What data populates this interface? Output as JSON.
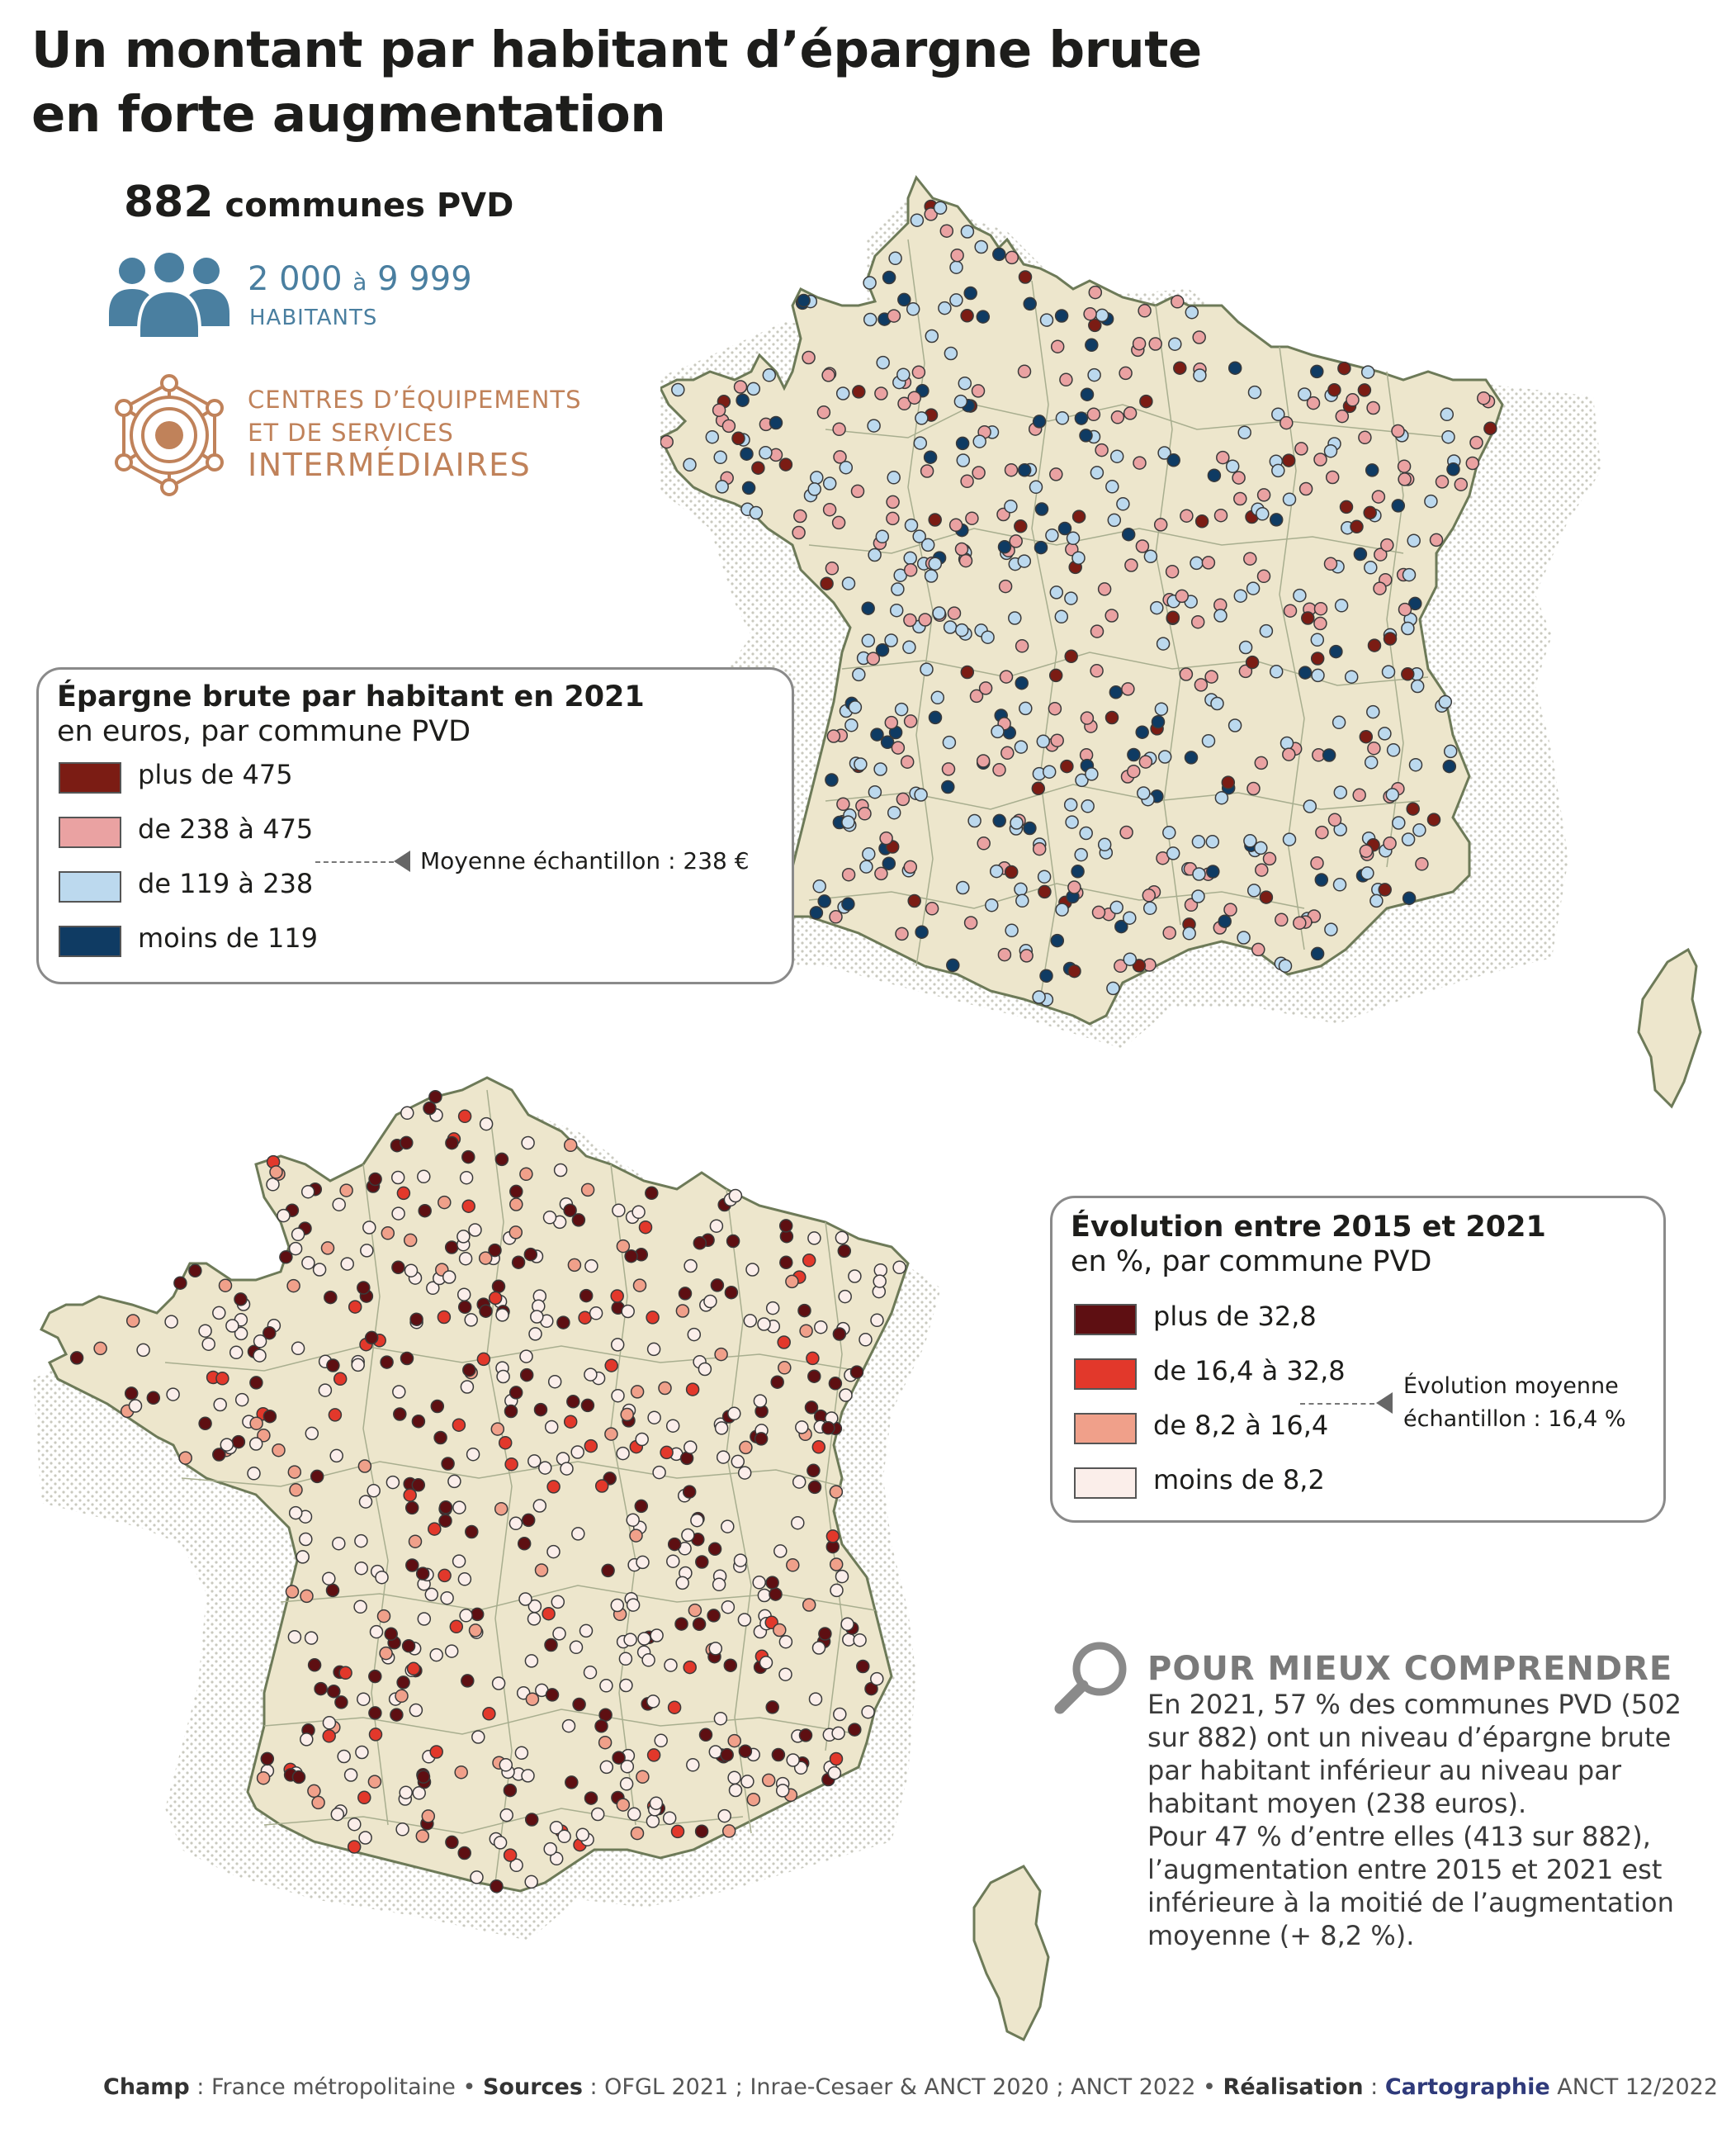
{
  "header": {
    "title_line1": "Un montant par habitant d’épargne brute",
    "title_line2": "en forte augmentation"
  },
  "summary": {
    "count": "882",
    "count_label": "communes PVD",
    "pop_from": "2 000",
    "pop_sep": "à",
    "pop_to": "9 999",
    "pop_unit": "HABITANTS",
    "ces_line1": "CENTRES D’ÉQUIPEMENTS",
    "ces_line2": "ET DE SERVICES",
    "ces_line3": "INTERMÉDIAIRES"
  },
  "legend_epargne": {
    "title": "Épargne brute par habitant en 2021",
    "subtitle": "en euros, par commune PVD",
    "items": [
      {
        "label": "plus de 475",
        "color": "#7b1c14"
      },
      {
        "label": "de 238 à 475",
        "color": "#eaa2a2"
      },
      {
        "label": "de 119 à 238",
        "color": "#bcd9ee"
      },
      {
        "label": "moins de 119",
        "color": "#0f3b63"
      }
    ],
    "average": "Moyenne échantillon : 238 €"
  },
  "legend_evolution": {
    "title": "Évolution entre 2015 et 2021",
    "subtitle": "en %, par commune PVD",
    "items": [
      {
        "label": "plus de 32,8",
        "color": "#5e0f12"
      },
      {
        "label": "de 16,4 à 32,8",
        "color": "#e2382b"
      },
      {
        "label": "de 8,2 à 16,4",
        "color": "#f0a08a"
      },
      {
        "label": "moins de 8,2",
        "color": "#fbeeea"
      }
    ],
    "average_line1": "Évolution moyenne",
    "average_line2": "échantillon : 16,4 %"
  },
  "pour_mieux": {
    "title": "POUR MIEUX COMPRENDRE",
    "body_p1": "En 2021, 57 % des communes PVD (502 sur 882) ont un niveau d’épargne brute par habitant inférieur au niveau par habitant moyen (238 euros).",
    "body_p2": "Pour 47 % d’entre elles (413 sur 882), l’augmentation entre 2015 et 2021 est inférieure à la moitié de l’augmentation moyenne (+ 8,2 %)."
  },
  "footer": {
    "champ_label": "Champ",
    "champ_value": " : France métropolitaine • ",
    "sources_label": "Sources",
    "sources_value": " : OFGL 2021 ; Inrae-Cesaer & ANCT 2020 ; ANCT 2022 •  ",
    "realisation_label": "Réalisation",
    "realisation_sep": " : ",
    "carto": "Cartographie",
    "realisation_value": " ANCT 12/2022"
  },
  "map_style": {
    "land_color": "#ede6cc",
    "border_color": "#6d7a58",
    "stroke_color": "#3a3a3a"
  }
}
